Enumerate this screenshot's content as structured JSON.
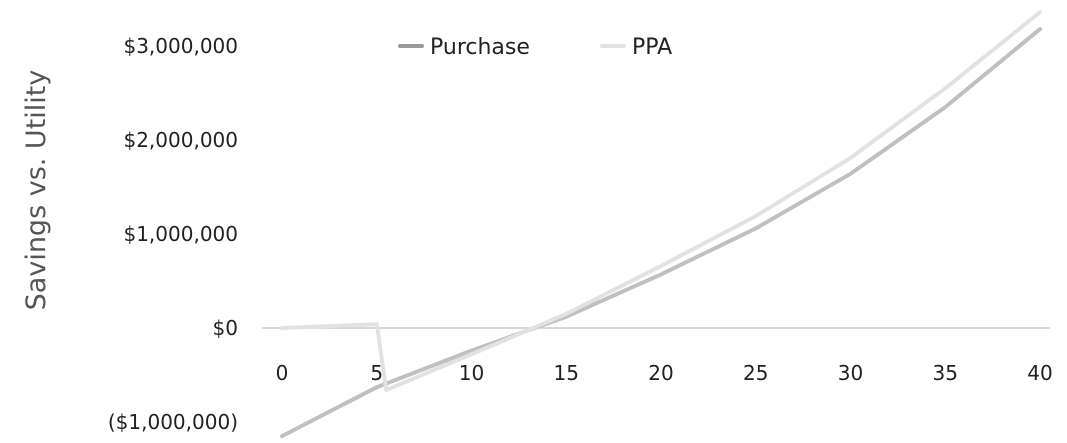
{
  "chart_data": {
    "type": "line",
    "title": "",
    "ylabel": "Savings vs. Utility",
    "xlabel": "",
    "xlim": [
      0,
      40
    ],
    "ylim": [
      -1000000,
      3000000
    ],
    "x_ticks": [
      0,
      5,
      10,
      15,
      20,
      25,
      30,
      35,
      40
    ],
    "x_tick_labels": [
      "0",
      "5",
      "10",
      "15",
      "20",
      "25",
      "30",
      "35",
      "40"
    ],
    "y_ticks": [
      3000000,
      2000000,
      1000000,
      0,
      -1000000
    ],
    "y_tick_labels": [
      "$3,000,000",
      "$2,000,000",
      "$1,000,000",
      "$0",
      "($1,000,000)"
    ],
    "grid": false,
    "legend_position": "top",
    "series": [
      {
        "name": "Purchase",
        "color": "#c0c0c0",
        "x": [
          0,
          5,
          10,
          15,
          20,
          25,
          30,
          35,
          40
        ],
        "y": [
          -1150000,
          -630000,
          -240000,
          120000,
          570000,
          1060000,
          1640000,
          2350000,
          3180000
        ]
      },
      {
        "name": "PPA",
        "color": "#e2e2e2",
        "x": [
          0,
          5,
          5.5,
          10,
          15,
          20,
          25,
          30,
          35,
          40
        ],
        "y": [
          0,
          40000,
          -660000,
          -280000,
          150000,
          660000,
          1190000,
          1810000,
          2550000,
          3360000
        ]
      }
    ],
    "axis_color": "#cccccc"
  }
}
